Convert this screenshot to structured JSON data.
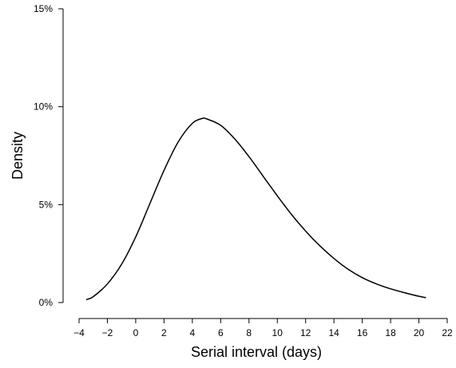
{
  "chart_data": {
    "type": "line",
    "title": "",
    "xlabel": "Serial interval (days)",
    "ylabel": "Density",
    "xlim": [
      -4,
      22
    ],
    "ylim": [
      0,
      0.15
    ],
    "x_ticks": [
      -4,
      -2,
      0,
      2,
      4,
      6,
      8,
      10,
      12,
      14,
      16,
      18,
      20,
      22
    ],
    "x_tick_labels": [
      "−4",
      "−2",
      "0",
      "2",
      "4",
      "6",
      "8",
      "10",
      "12",
      "14",
      "16",
      "18",
      "20",
      "22"
    ],
    "y_ticks": [
      0,
      0.05,
      0.1,
      0.15
    ],
    "y_tick_labels": [
      "0%",
      "5%",
      "10%",
      "15%"
    ],
    "grid": false,
    "series": [
      {
        "color": "#000000",
        "x": [
          -3.5,
          -3,
          -2,
          -1,
          0,
          1,
          2,
          3,
          4,
          4.7,
          5,
          6,
          7,
          8,
          9,
          10,
          11,
          12,
          13,
          14,
          15,
          16,
          17,
          18,
          19,
          20,
          20.5
        ],
        "y": [
          0.0015,
          0.003,
          0.0095,
          0.0195,
          0.0335,
          0.0505,
          0.0675,
          0.082,
          0.0915,
          0.094,
          0.0938,
          0.0905,
          0.0835,
          0.0745,
          0.0645,
          0.0545,
          0.045,
          0.0365,
          0.029,
          0.0225,
          0.017,
          0.0127,
          0.0095,
          0.007,
          0.005,
          0.0032,
          0.0025
        ]
      }
    ]
  }
}
